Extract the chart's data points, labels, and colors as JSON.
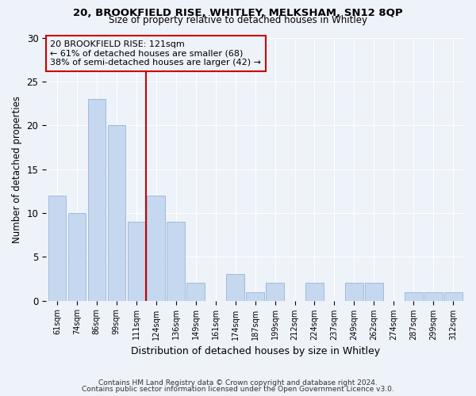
{
  "title1": "20, BROOKFIELD RISE, WHITLEY, MELKSHAM, SN12 8QP",
  "title2": "Size of property relative to detached houses in Whitley",
  "xlabel": "Distribution of detached houses by size in Whitley",
  "ylabel": "Number of detached properties",
  "footer1": "Contains HM Land Registry data © Crown copyright and database right 2024.",
  "footer2": "Contains public sector information licensed under the Open Government Licence v3.0.",
  "annotation_line1": "20 BROOKFIELD RISE: 121sqm",
  "annotation_line2": "← 61% of detached houses are smaller (68)",
  "annotation_line3": "38% of semi-detached houses are larger (42) →",
  "bar_labels": [
    "61sqm",
    "74sqm",
    "86sqm",
    "99sqm",
    "111sqm",
    "124sqm",
    "136sqm",
    "149sqm",
    "161sqm",
    "174sqm",
    "187sqm",
    "199sqm",
    "212sqm",
    "224sqm",
    "237sqm",
    "249sqm",
    "262sqm",
    "274sqm",
    "287sqm",
    "299sqm",
    "312sqm"
  ],
  "bar_values": [
    12,
    10,
    23,
    20,
    9,
    12,
    9,
    2,
    0,
    3,
    1,
    2,
    0,
    2,
    0,
    2,
    2,
    0,
    1,
    1,
    1
  ],
  "bar_color": "#c5d8f0",
  "bar_edge_color": "#a0bcd8",
  "subject_line_color": "#cc0000",
  "background_color": "#eef2f9",
  "grid_color": "#ffffff",
  "ylim": [
    0,
    30
  ],
  "yticks": [
    0,
    5,
    10,
    15,
    20,
    25,
    30
  ],
  "subject_bar_index": 5,
  "title1_fontsize": 9.5,
  "title2_fontsize": 8.5
}
